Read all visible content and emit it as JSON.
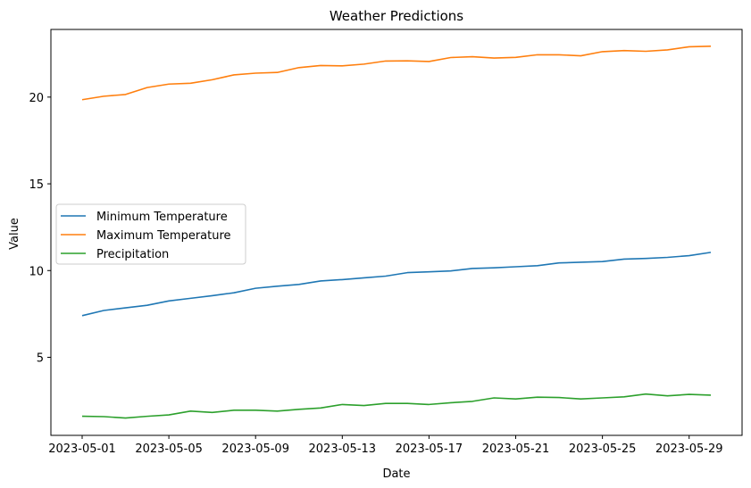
{
  "chart_data": {
    "type": "line",
    "title": "Weather Predictions",
    "xlabel": "Date",
    "ylabel": "Value",
    "x": [
      "2023-05-01",
      "2023-05-02",
      "2023-05-03",
      "2023-05-04",
      "2023-05-05",
      "2023-05-06",
      "2023-05-07",
      "2023-05-08",
      "2023-05-09",
      "2023-05-10",
      "2023-05-11",
      "2023-05-12",
      "2023-05-13",
      "2023-05-14",
      "2023-05-15",
      "2023-05-16",
      "2023-05-17",
      "2023-05-18",
      "2023-05-19",
      "2023-05-20",
      "2023-05-21",
      "2023-05-22",
      "2023-05-23",
      "2023-05-24",
      "2023-05-25",
      "2023-05-26",
      "2023-05-27",
      "2023-05-28",
      "2023-05-29",
      "2023-05-30"
    ],
    "xticks": [
      "2023-05-01",
      "2023-05-05",
      "2023-05-09",
      "2023-05-13",
      "2023-05-17",
      "2023-05-21",
      "2023-05-25",
      "2023-05-29"
    ],
    "yticks": [
      5,
      10,
      15,
      20
    ],
    "ylim": [
      0.5,
      23.9
    ],
    "grid": false,
    "legend_position": "center-left",
    "series": [
      {
        "name": "Minimum Temperature",
        "color": "#1f77b4",
        "values": [
          7.4,
          7.7,
          7.85,
          8.0,
          8.25,
          8.4,
          8.55,
          8.72,
          8.98,
          9.1,
          9.2,
          9.4,
          9.48,
          9.58,
          9.68,
          9.88,
          9.93,
          9.98,
          10.12,
          10.16,
          10.22,
          10.28,
          10.44,
          10.48,
          10.52,
          10.66,
          10.7,
          10.76,
          10.86,
          11.05
        ]
      },
      {
        "name": "Maximum Temperature",
        "color": "#ff7f0e",
        "values": [
          19.85,
          20.05,
          20.15,
          20.55,
          20.75,
          20.8,
          21.0,
          21.28,
          21.38,
          21.42,
          21.7,
          21.82,
          21.8,
          21.9,
          22.08,
          22.09,
          22.05,
          22.28,
          22.33,
          22.25,
          22.29,
          22.44,
          22.44,
          22.38,
          22.62,
          22.68,
          22.64,
          22.72,
          22.9,
          22.93
        ]
      },
      {
        "name": "Precipitation",
        "color": "#2ca02c",
        "values": [
          1.6,
          1.58,
          1.5,
          1.6,
          1.68,
          1.9,
          1.82,
          1.95,
          1.95,
          1.9,
          2.0,
          2.08,
          2.28,
          2.22,
          2.34,
          2.34,
          2.28,
          2.38,
          2.46,
          2.66,
          2.6,
          2.7,
          2.68,
          2.6,
          2.66,
          2.72,
          2.88,
          2.78,
          2.86,
          2.82
        ]
      }
    ]
  }
}
